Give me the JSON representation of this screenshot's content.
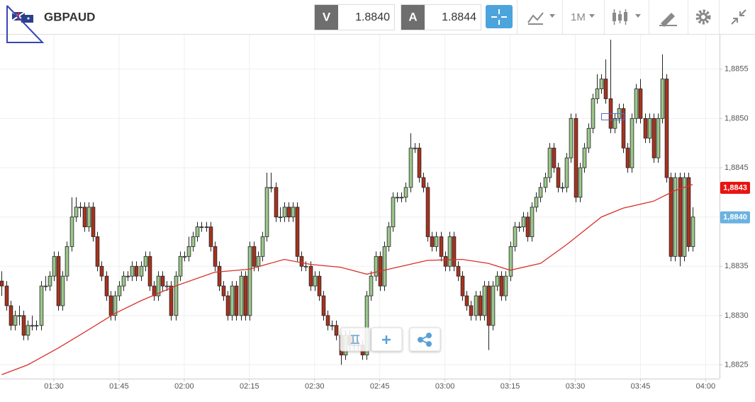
{
  "header": {
    "symbol": "GBPAUD",
    "bid_label": "V",
    "bid": "1.8840",
    "ask_label": "A",
    "ask": "1.8844",
    "timeframe": "1M"
  },
  "chart_data": {
    "type": "candlestick",
    "xlim": [
      77.6,
      243.2
    ],
    "ylim": [
      1.88236,
      1.88585
    ],
    "xticks": [
      {
        "value": 90,
        "label": "01:30"
      },
      {
        "value": 105,
        "label": "01:45"
      },
      {
        "value": 120,
        "label": "02:00"
      },
      {
        "value": 135,
        "label": "02:15"
      },
      {
        "value": 150,
        "label": "02:30"
      },
      {
        "value": 165,
        "label": "02:45"
      },
      {
        "value": 180,
        "label": "03:00"
      },
      {
        "value": 195,
        "label": "03:15"
      },
      {
        "value": 210,
        "label": "03:30"
      },
      {
        "value": 225,
        "label": "03:45"
      },
      {
        "value": 240,
        "label": "04:00"
      }
    ],
    "yticks": [
      {
        "value": 1.8825,
        "label": "1,8825"
      },
      {
        "value": 1.883,
        "label": "1,8830"
      },
      {
        "value": 1.8835,
        "label": "1,8835"
      },
      {
        "value": 1.884,
        "label": "1,8840"
      },
      {
        "value": 1.8845,
        "label": "1,8845"
      },
      {
        "value": 1.885,
        "label": "1,8850"
      },
      {
        "value": 1.8855,
        "label": "1,8855"
      }
    ],
    "grid": true,
    "up_color": "#9cc78c",
    "down_color": "#a8321f",
    "candles": [
      [
        78,
        1.88335,
        1.88345,
        1.8832,
        1.8833
      ],
      [
        79,
        1.8833,
        1.88335,
        1.88305,
        1.8831
      ],
      [
        80,
        1.8831,
        1.88315,
        1.88285,
        1.8829
      ],
      [
        81,
        1.8829,
        1.88305,
        1.88285,
        1.883
      ],
      [
        82,
        1.883,
        1.8831,
        1.8829,
        1.883
      ],
      [
        83,
        1.883,
        1.88305,
        1.88275,
        1.8828
      ],
      [
        84,
        1.8828,
        1.88295,
        1.88275,
        1.8829
      ],
      [
        85,
        1.8829,
        1.883,
        1.88285,
        1.8829
      ],
      [
        86,
        1.8829,
        1.88295,
        1.88285,
        1.8829
      ],
      [
        87,
        1.8829,
        1.88335,
        1.88285,
        1.8833
      ],
      [
        88,
        1.8833,
        1.8834,
        1.88325,
        1.8833
      ],
      [
        89,
        1.8833,
        1.88345,
        1.88325,
        1.8834
      ],
      [
        90,
        1.8834,
        1.88365,
        1.88335,
        1.8836
      ],
      [
        91,
        1.8836,
        1.88365,
        1.88305,
        1.8831
      ],
      [
        92,
        1.8831,
        1.88345,
        1.88305,
        1.8834
      ],
      [
        93,
        1.8834,
        1.88375,
        1.88335,
        1.8837
      ],
      [
        94,
        1.8837,
        1.8842,
        1.88365,
        1.884
      ],
      [
        95,
        1.884,
        1.8842,
        1.88395,
        1.8841
      ],
      [
        96,
        1.8841,
        1.88415,
        1.884,
        1.8841
      ],
      [
        97,
        1.8841,
        1.88415,
        1.88385,
        1.8839
      ],
      [
        98,
        1.8839,
        1.88415,
        1.88385,
        1.8841
      ],
      [
        99,
        1.8841,
        1.88415,
        1.88375,
        1.8838
      ],
      [
        100,
        1.8838,
        1.88385,
        1.88345,
        1.8835
      ],
      [
        101,
        1.8835,
        1.88355,
        1.88335,
        1.8834
      ],
      [
        102,
        1.8834,
        1.88345,
        1.88315,
        1.8832
      ],
      [
        103,
        1.8832,
        1.88325,
        1.88295,
        1.883
      ],
      [
        104,
        1.883,
        1.88325,
        1.88295,
        1.8832
      ],
      [
        105,
        1.8832,
        1.88335,
        1.88315,
        1.8833
      ],
      [
        106,
        1.8833,
        1.88345,
        1.88325,
        1.8834
      ],
      [
        107,
        1.8834,
        1.88345,
        1.88335,
        1.8834
      ],
      [
        108,
        1.8834,
        1.88355,
        1.88335,
        1.8835
      ],
      [
        109,
        1.8835,
        1.88355,
        1.88335,
        1.8834
      ],
      [
        110,
        1.8834,
        1.88355,
        1.88335,
        1.8835
      ],
      [
        111,
        1.8835,
        1.88365,
        1.88345,
        1.8836
      ],
      [
        112,
        1.8836,
        1.88365,
        1.88325,
        1.8833
      ],
      [
        113,
        1.8833,
        1.88335,
        1.88315,
        1.8832
      ],
      [
        114,
        1.8832,
        1.88345,
        1.88315,
        1.8834
      ],
      [
        115,
        1.8834,
        1.88345,
        1.88325,
        1.8833
      ],
      [
        116,
        1.8833,
        1.88335,
        1.88325,
        1.8833
      ],
      [
        117,
        1.8833,
        1.88335,
        1.88295,
        1.883
      ],
      [
        118,
        1.883,
        1.88345,
        1.88295,
        1.8834
      ],
      [
        119,
        1.8834,
        1.88365,
        1.88335,
        1.8836
      ],
      [
        120,
        1.8836,
        1.88365,
        1.88355,
        1.8836
      ],
      [
        121,
        1.8836,
        1.8838,
        1.88355,
        1.8837
      ],
      [
        122,
        1.8837,
        1.88385,
        1.88365,
        1.8838
      ],
      [
        123,
        1.8838,
        1.88395,
        1.88375,
        1.8839
      ],
      [
        124,
        1.8839,
        1.88395,
        1.88385,
        1.8839
      ],
      [
        125,
        1.8839,
        1.88395,
        1.88385,
        1.8839
      ],
      [
        126,
        1.8839,
        1.88395,
        1.88365,
        1.8837
      ],
      [
        127,
        1.8837,
        1.88375,
        1.88345,
        1.8835
      ],
      [
        128,
        1.8835,
        1.88355,
        1.88325,
        1.8833
      ],
      [
        129,
        1.8833,
        1.88335,
        1.88315,
        1.8832
      ],
      [
        130,
        1.8832,
        1.88325,
        1.88295,
        1.883
      ],
      [
        131,
        1.883,
        1.88335,
        1.88295,
        1.8833
      ],
      [
        132,
        1.8833,
        1.88335,
        1.88295,
        1.883
      ],
      [
        133,
        1.883,
        1.88345,
        1.88295,
        1.8834
      ],
      [
        134,
        1.8834,
        1.88345,
        1.88295,
        1.883
      ],
      [
        135,
        1.883,
        1.88375,
        1.88295,
        1.8837
      ],
      [
        136,
        1.8837,
        1.88375,
        1.88345,
        1.8835
      ],
      [
        137,
        1.8835,
        1.88365,
        1.88345,
        1.8836
      ],
      [
        138,
        1.8836,
        1.88385,
        1.88355,
        1.8838
      ],
      [
        139,
        1.8838,
        1.88445,
        1.88375,
        1.8843
      ],
      [
        140,
        1.8843,
        1.88445,
        1.88425,
        1.8843
      ],
      [
        141,
        1.8843,
        1.88435,
        1.88395,
        1.884
      ],
      [
        142,
        1.884,
        1.8841,
        1.88395,
        1.884
      ],
      [
        143,
        1.884,
        1.88415,
        1.88395,
        1.8841
      ],
      [
        144,
        1.8841,
        1.88415,
        1.88395,
        1.884
      ],
      [
        145,
        1.884,
        1.88415,
        1.88395,
        1.8841
      ],
      [
        146,
        1.8841,
        1.88415,
        1.88355,
        1.8836
      ],
      [
        147,
        1.8836,
        1.88365,
        1.88345,
        1.8835
      ],
      [
        148,
        1.8835,
        1.88355,
        1.88345,
        1.8835
      ],
      [
        149,
        1.8835,
        1.88355,
        1.88325,
        1.8833
      ],
      [
        150,
        1.8833,
        1.88345,
        1.88325,
        1.8834
      ],
      [
        151,
        1.8834,
        1.88345,
        1.88315,
        1.8832
      ],
      [
        152,
        1.8832,
        1.88325,
        1.88295,
        1.883
      ],
      [
        153,
        1.883,
        1.88305,
        1.88285,
        1.8829
      ],
      [
        154,
        1.8829,
        1.88295,
        1.88285,
        1.8829
      ],
      [
        155,
        1.8829,
        1.88295,
        1.88275,
        1.8828
      ],
      [
        156,
        1.8828,
        1.88285,
        1.8825,
        1.8826
      ],
      [
        157,
        1.8826,
        1.88285,
        1.88255,
        1.8828
      ],
      [
        158,
        1.8828,
        1.88285,
        1.88265,
        1.8827
      ],
      [
        159,
        1.8827,
        1.88275,
        1.88265,
        1.8827
      ],
      [
        160,
        1.8827,
        1.88275,
        1.88265,
        1.8827
      ],
      [
        161,
        1.8827,
        1.88275,
        1.88255,
        1.8826
      ],
      [
        162,
        1.8826,
        1.88325,
        1.88255,
        1.8832
      ],
      [
        163,
        1.8832,
        1.88345,
        1.88315,
        1.8834
      ],
      [
        164,
        1.8834,
        1.88365,
        1.88335,
        1.8836
      ],
      [
        165,
        1.8836,
        1.88365,
        1.88325,
        1.8833
      ],
      [
        166,
        1.8833,
        1.88375,
        1.88325,
        1.8837
      ],
      [
        167,
        1.8837,
        1.88395,
        1.88365,
        1.8839
      ],
      [
        168,
        1.8839,
        1.88425,
        1.88385,
        1.8842
      ],
      [
        169,
        1.8842,
        1.88425,
        1.88415,
        1.8842
      ],
      [
        170,
        1.8842,
        1.88425,
        1.88415,
        1.8842
      ],
      [
        171,
        1.8842,
        1.88435,
        1.88415,
        1.8843
      ],
      [
        172,
        1.8843,
        1.88485,
        1.88425,
        1.8847
      ],
      [
        173,
        1.8847,
        1.88475,
        1.88465,
        1.8847
      ],
      [
        174,
        1.8847,
        1.88475,
        1.88435,
        1.8844
      ],
      [
        175,
        1.8844,
        1.88445,
        1.88425,
        1.8843
      ],
      [
        176,
        1.8843,
        1.88435,
        1.88375,
        1.8838
      ],
      [
        177,
        1.8838,
        1.88385,
        1.88365,
        1.8837
      ],
      [
        178,
        1.8837,
        1.88385,
        1.88365,
        1.8838
      ],
      [
        179,
        1.8838,
        1.88385,
        1.88355,
        1.8836
      ],
      [
        180,
        1.8836,
        1.88365,
        1.88345,
        1.8835
      ],
      [
        181,
        1.8835,
        1.88385,
        1.88345,
        1.8838
      ],
      [
        182,
        1.8838,
        1.88385,
        1.88345,
        1.8835
      ],
      [
        183,
        1.8835,
        1.88355,
        1.88335,
        1.8834
      ],
      [
        184,
        1.8834,
        1.88345,
        1.88315,
        1.8832
      ],
      [
        185,
        1.8832,
        1.88325,
        1.88305,
        1.8831
      ],
      [
        186,
        1.8831,
        1.88315,
        1.88295,
        1.883
      ],
      [
        187,
        1.883,
        1.88325,
        1.88295,
        1.8832
      ],
      [
        188,
        1.8832,
        1.88325,
        1.88295,
        1.883
      ],
      [
        189,
        1.883,
        1.88335,
        1.88295,
        1.8833
      ],
      [
        190,
        1.8833,
        1.88335,
        1.88265,
        1.8829
      ],
      [
        191,
        1.8829,
        1.88335,
        1.88285,
        1.8833
      ],
      [
        192,
        1.8833,
        1.88345,
        1.88325,
        1.8834
      ],
      [
        193,
        1.8834,
        1.88345,
        1.88315,
        1.8832
      ],
      [
        194,
        1.8832,
        1.88345,
        1.88315,
        1.8834
      ],
      [
        195,
        1.8834,
        1.88375,
        1.88335,
        1.8837
      ],
      [
        196,
        1.8837,
        1.88395,
        1.88365,
        1.8839
      ],
      [
        197,
        1.8839,
        1.88395,
        1.88385,
        1.8839
      ],
      [
        198,
        1.8839,
        1.88405,
        1.88385,
        1.884
      ],
      [
        199,
        1.884,
        1.88405,
        1.88375,
        1.8838
      ],
      [
        200,
        1.8838,
        1.88415,
        1.88375,
        1.8841
      ],
      [
        201,
        1.8841,
        1.88425,
        1.88405,
        1.8842
      ],
      [
        202,
        1.8842,
        1.88435,
        1.88415,
        1.8843
      ],
      [
        203,
        1.8843,
        1.88445,
        1.88425,
        1.8844
      ],
      [
        204,
        1.8844,
        1.88475,
        1.88435,
        1.8847
      ],
      [
        205,
        1.8847,
        1.88475,
        1.88445,
        1.8845
      ],
      [
        206,
        1.8845,
        1.88455,
        1.88425,
        1.8843
      ],
      [
        207,
        1.8843,
        1.88435,
        1.88425,
        1.8843
      ],
      [
        208,
        1.8843,
        1.88465,
        1.88425,
        1.8846
      ],
      [
        209,
        1.8846,
        1.88505,
        1.88455,
        1.885
      ],
      [
        210,
        1.885,
        1.88505,
        1.88415,
        1.8842
      ],
      [
        211,
        1.8842,
        1.88455,
        1.88415,
        1.8845
      ],
      [
        212,
        1.8845,
        1.88475,
        1.88445,
        1.8847
      ],
      [
        213,
        1.8847,
        1.88495,
        1.88465,
        1.8849
      ],
      [
        214,
        1.8849,
        1.88525,
        1.88485,
        1.8852
      ],
      [
        215,
        1.8852,
        1.88545,
        1.88515,
        1.8853
      ],
      [
        216,
        1.8853,
        1.88545,
        1.88525,
        1.8854
      ],
      [
        217,
        1.8854,
        1.8856,
        1.88515,
        1.8852
      ],
      [
        218,
        1.8852,
        1.8858,
        1.88485,
        1.8849
      ],
      [
        219,
        1.8849,
        1.88505,
        1.88485,
        1.885
      ],
      [
        220,
        1.885,
        1.88515,
        1.88495,
        1.8851
      ],
      [
        221,
        1.8851,
        1.88515,
        1.88465,
        1.8847
      ],
      [
        222,
        1.8847,
        1.88475,
        1.88445,
        1.8845
      ],
      [
        223,
        1.8845,
        1.88505,
        1.88445,
        1.885
      ],
      [
        224,
        1.885,
        1.88535,
        1.88495,
        1.8853
      ],
      [
        225,
        1.8853,
        1.8854,
        1.88495,
        1.885
      ],
      [
        226,
        1.885,
        1.88505,
        1.88475,
        1.8848
      ],
      [
        227,
        1.8848,
        1.88505,
        1.88475,
        1.885
      ],
      [
        228,
        1.885,
        1.88505,
        1.88455,
        1.8846
      ],
      [
        229,
        1.8846,
        1.88505,
        1.88455,
        1.885
      ],
      [
        230,
        1.885,
        1.88565,
        1.88495,
        1.8854
      ],
      [
        231,
        1.8854,
        1.88545,
        1.88435,
        1.8844
      ],
      [
        232,
        1.8844,
        1.88445,
        1.88355,
        1.8836
      ],
      [
        233,
        1.8836,
        1.88445,
        1.88355,
        1.8844
      ],
      [
        234,
        1.8844,
        1.88445,
        1.8835,
        1.8836
      ],
      [
        235,
        1.8836,
        1.88445,
        1.88355,
        1.8844
      ],
      [
        236,
        1.8844,
        1.88445,
        1.88365,
        1.8837
      ],
      [
        237,
        1.8837,
        1.8841,
        1.88365,
        1.884
      ]
    ],
    "ma": {
      "color": "#d9302a",
      "x": [
        78,
        84,
        91,
        97,
        104,
        110,
        118,
        127,
        135,
        143,
        149,
        156,
        162,
        169,
        176,
        184,
        190,
        195,
        202,
        208,
        216,
        221,
        228,
        233,
        237
      ],
      "values": [
        1.8824,
        1.8825,
        1.88267,
        1.88283,
        1.88302,
        1.88315,
        1.8833,
        1.88344,
        1.88347,
        1.88357,
        1.88352,
        1.88349,
        1.88342,
        1.88349,
        1.88356,
        1.88357,
        1.88353,
        1.88346,
        1.88353,
        1.88372,
        1.884,
        1.88409,
        1.88416,
        1.88427,
        1.88433
      ]
    },
    "price_tags": [
      {
        "value": 1.8843,
        "label": "1,8843",
        "color": "#e8140f"
      },
      {
        "value": 1.884,
        "label": "1,8840",
        "color": "#6bb2e0"
      }
    ]
  }
}
